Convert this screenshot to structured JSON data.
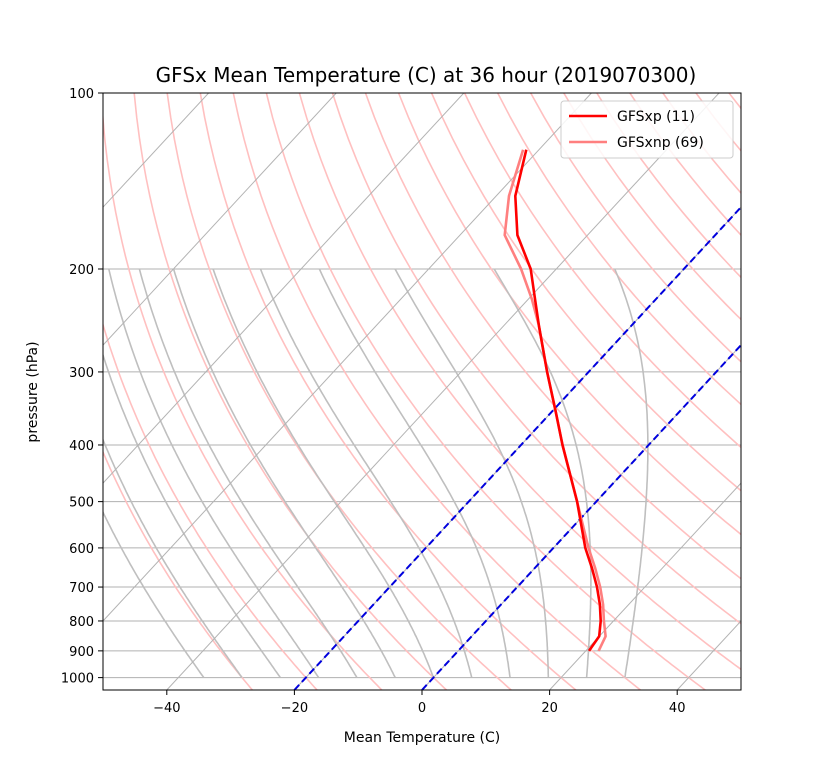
{
  "chart_data": {
    "type": "line",
    "title": "GFSx Mean Temperature (C) at 36 hour  (2019070300)",
    "xlabel": "Mean Temperature (C)",
    "ylabel": "pressure (hPa)",
    "xlim": [
      -50,
      50
    ],
    "ylim": [
      1050,
      100
    ],
    "y_scale": "log",
    "skew_t": true,
    "x_ticks": [
      -40,
      -20,
      0,
      20,
      40
    ],
    "x_tick_labels": [
      "−40",
      "−20",
      "0",
      "20",
      "40"
    ],
    "y_ticks": [
      100,
      200,
      300,
      400,
      500,
      600,
      700,
      800,
      900,
      1000
    ],
    "y_tick_labels": [
      "100",
      "200",
      "300",
      "400",
      "500",
      "600",
      "700",
      "800",
      "900",
      "1000"
    ],
    "legend_position": "top-right",
    "series": [
      {
        "name": "GFSxp (11)",
        "color": "#ff0000",
        "pressure": [
          900,
          850,
          800,
          750,
          700,
          650,
          600,
          500,
          400,
          350,
          300,
          250,
          225,
          200,
          175,
          150,
          125
        ],
        "temperature": [
          20.5,
          20.0,
          18.0,
          15.5,
          12.5,
          9.0,
          5.0,
          -3.0,
          -13.5,
          -19.5,
          -26.5,
          -34.5,
          -39.0,
          -44.0,
          -51.0,
          -57.0,
          -62.0
        ]
      },
      {
        "name": "GFSxnp (69)",
        "color": "#ff7f7f",
        "pressure": [
          900,
          850,
          800,
          750,
          700,
          650,
          600,
          500,
          400,
          350,
          300,
          250,
          225,
          200,
          175,
          150,
          125
        ],
        "temperature": [
          22.0,
          21.0,
          18.5,
          16.0,
          13.0,
          9.5,
          5.5,
          -3.0,
          -13.5,
          -19.5,
          -26.5,
          -34.5,
          -39.5,
          -45.5,
          -53.0,
          -58.0,
          -62.5
        ]
      }
    ],
    "reference_lines": {
      "isotherms_color": "#b3b3b3",
      "dry_adiabats_color": "#ffc0c0",
      "moist_adiabats_color": "#bfbfbf",
      "dashed_isotherms": [
        -20,
        0
      ],
      "dashed_color": "#0000dd"
    }
  }
}
